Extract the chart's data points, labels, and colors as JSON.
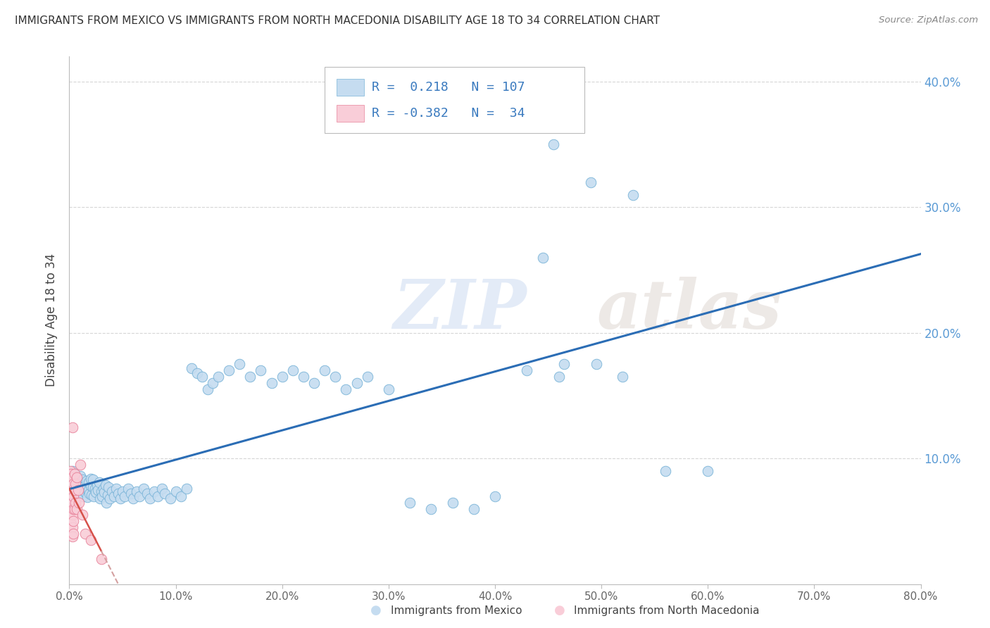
{
  "title": "IMMIGRANTS FROM MEXICO VS IMMIGRANTS FROM NORTH MACEDONIA DISABILITY AGE 18 TO 34 CORRELATION CHART",
  "source": "Source: ZipAtlas.com",
  "ylabel": "Disability Age 18 to 34",
  "xlim": [
    0.0,
    0.8
  ],
  "ylim": [
    0.0,
    0.42
  ],
  "xticks": [
    0.0,
    0.1,
    0.2,
    0.3,
    0.4,
    0.5,
    0.6,
    0.7,
    0.8
  ],
  "yticks": [
    0.1,
    0.2,
    0.3,
    0.4
  ],
  "ytick_labels": [
    "10.0%",
    "20.0%",
    "30.0%",
    "40.0%"
  ],
  "xtick_labels": [
    "0.0%",
    "10.0%",
    "20.0%",
    "30.0%",
    "40.0%",
    "50.0%",
    "60.0%",
    "70.0%",
    "80.0%"
  ],
  "grid_color": "#cccccc",
  "background_color": "#ffffff",
  "mexico_color": "#c5dcf0",
  "mexico_edge_color": "#7ab4d8",
  "macedonia_color": "#f9cdd8",
  "macedonia_edge_color": "#e8829a",
  "trend_mexico_color": "#2b6db5",
  "trend_macedonia_color": "#d6514a",
  "trend_macedonia_dash_color": "#d4a0a0",
  "R_mexico": 0.218,
  "N_mexico": 107,
  "R_macedonia": -0.382,
  "N_macedonia": 34,
  "watermark": "ZIPatlas",
  "watermark_zip_color": "#c8d8f0",
  "watermark_atlas_color": "#d0c8c0",
  "legend_label_mexico": "Immigrants from Mexico",
  "legend_label_macedonia": "Immigrants from North Macedonia",
  "mexico_x": [
    0.003,
    0.004,
    0.005,
    0.005,
    0.006,
    0.006,
    0.007,
    0.007,
    0.008,
    0.008,
    0.009,
    0.009,
    0.01,
    0.01,
    0.01,
    0.011,
    0.011,
    0.012,
    0.012,
    0.013,
    0.013,
    0.014,
    0.014,
    0.015,
    0.015,
    0.016,
    0.016,
    0.017,
    0.018,
    0.018,
    0.019,
    0.02,
    0.02,
    0.021,
    0.022,
    0.022,
    0.023,
    0.024,
    0.025,
    0.026,
    0.027,
    0.028,
    0.029,
    0.03,
    0.031,
    0.032,
    0.033,
    0.034,
    0.035,
    0.036,
    0.037,
    0.038,
    0.04,
    0.042,
    0.044,
    0.046,
    0.048,
    0.05,
    0.052,
    0.055,
    0.058,
    0.06,
    0.063,
    0.066,
    0.07,
    0.073,
    0.076,
    0.08,
    0.083,
    0.087,
    0.09,
    0.095,
    0.1,
    0.105,
    0.11,
    0.115,
    0.12,
    0.125,
    0.13,
    0.135,
    0.14,
    0.15,
    0.16,
    0.17,
    0.18,
    0.19,
    0.2,
    0.21,
    0.22,
    0.23,
    0.24,
    0.25,
    0.26,
    0.27,
    0.28,
    0.3,
    0.32,
    0.34,
    0.36,
    0.38,
    0.4,
    0.43,
    0.46,
    0.49,
    0.52,
    0.56,
    0.6
  ],
  "mexico_y": [
    0.09,
    0.085,
    0.08,
    0.088,
    0.075,
    0.083,
    0.078,
    0.085,
    0.072,
    0.08,
    0.077,
    0.082,
    0.075,
    0.08,
    0.086,
    0.073,
    0.079,
    0.076,
    0.083,
    0.07,
    0.077,
    0.074,
    0.08,
    0.073,
    0.079,
    0.076,
    0.082,
    0.069,
    0.075,
    0.081,
    0.072,
    0.078,
    0.084,
    0.071,
    0.077,
    0.083,
    0.07,
    0.076,
    0.073,
    0.079,
    0.075,
    0.081,
    0.068,
    0.074,
    0.07,
    0.076,
    0.073,
    0.079,
    0.065,
    0.071,
    0.077,
    0.068,
    0.074,
    0.07,
    0.076,
    0.072,
    0.068,
    0.074,
    0.07,
    0.076,
    0.072,
    0.068,
    0.074,
    0.07,
    0.076,
    0.072,
    0.068,
    0.074,
    0.07,
    0.076,
    0.072,
    0.068,
    0.074,
    0.07,
    0.076,
    0.172,
    0.168,
    0.165,
    0.155,
    0.16,
    0.165,
    0.17,
    0.175,
    0.165,
    0.17,
    0.16,
    0.165,
    0.17,
    0.165,
    0.16,
    0.17,
    0.165,
    0.155,
    0.16,
    0.165,
    0.155,
    0.065,
    0.06,
    0.065,
    0.06,
    0.07,
    0.17,
    0.165,
    0.32,
    0.165,
    0.09,
    0.09
  ],
  "mexico_y_outliers": [
    [
      0.455,
      0.35
    ],
    [
      0.53,
      0.31
    ],
    [
      0.445,
      0.26
    ],
    [
      0.465,
      0.175
    ],
    [
      0.495,
      0.175
    ]
  ],
  "macedonia_x": [
    0.001,
    0.001,
    0.001,
    0.001,
    0.002,
    0.002,
    0.002,
    0.002,
    0.002,
    0.003,
    0.003,
    0.003,
    0.003,
    0.003,
    0.003,
    0.004,
    0.004,
    0.004,
    0.004,
    0.004,
    0.005,
    0.005,
    0.005,
    0.006,
    0.006,
    0.007,
    0.007,
    0.008,
    0.009,
    0.01,
    0.012,
    0.015,
    0.02,
    0.03
  ],
  "macedonia_y": [
    0.09,
    0.08,
    0.07,
    0.06,
    0.088,
    0.078,
    0.068,
    0.058,
    0.048,
    0.085,
    0.075,
    0.065,
    0.055,
    0.045,
    0.038,
    0.08,
    0.07,
    0.06,
    0.05,
    0.04,
    0.088,
    0.075,
    0.06,
    0.08,
    0.065,
    0.085,
    0.06,
    0.075,
    0.065,
    0.095,
    0.055,
    0.04,
    0.035,
    0.02
  ],
  "macedonia_outlier_x": [
    0.003
  ],
  "macedonia_outlier_y": [
    0.125
  ]
}
